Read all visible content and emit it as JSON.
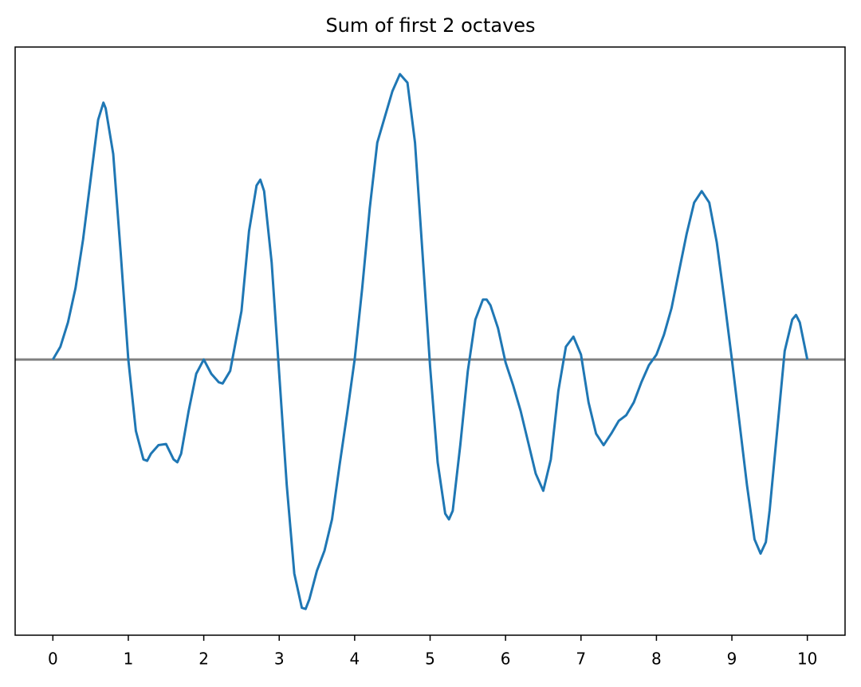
{
  "chart_data": {
    "type": "line",
    "title": "Sum of first 2 octaves",
    "x": [
      0,
      0.1,
      0.2,
      0.3,
      0.4,
      0.5,
      0.6,
      0.67,
      0.7,
      0.8,
      0.9,
      1.0,
      1.1,
      1.2,
      1.25,
      1.3,
      1.4,
      1.5,
      1.6,
      1.65,
      1.7,
      1.8,
      1.9,
      2.0,
      2.1,
      2.2,
      2.25,
      2.35,
      2.5,
      2.6,
      2.7,
      2.75,
      2.8,
      2.9,
      3.0,
      3.1,
      3.2,
      3.3,
      3.35,
      3.4,
      3.5,
      3.6,
      3.7,
      3.8,
      3.9,
      4.0,
      4.1,
      4.2,
      4.3,
      4.4,
      4.5,
      4.6,
      4.7,
      4.8,
      4.9,
      5.0,
      5.1,
      5.2,
      5.25,
      5.3,
      5.4,
      5.5,
      5.6,
      5.7,
      5.75,
      5.8,
      5.9,
      6.0,
      6.1,
      6.2,
      6.3,
      6.4,
      6.5,
      6.6,
      6.7,
      6.8,
      6.9,
      7.0,
      7.1,
      7.2,
      7.3,
      7.4,
      7.5,
      7.6,
      7.7,
      7.8,
      7.9,
      8.0,
      8.1,
      8.2,
      8.3,
      8.4,
      8.5,
      8.6,
      8.7,
      8.8,
      8.9,
      9.0,
      9.1,
      9.2,
      9.3,
      9.38,
      9.45,
      9.5,
      9.6,
      9.7,
      9.8,
      9.85,
      9.9,
      10
    ],
    "series": [
      {
        "color": "#1f77b4",
        "values": [
          0,
          0.045,
          0.13,
          0.25,
          0.42,
          0.63,
          0.84,
          0.9,
          0.88,
          0.72,
          0.37,
          0,
          -0.25,
          -0.35,
          -0.355,
          -0.33,
          -0.3,
          -0.296,
          -0.35,
          -0.36,
          -0.33,
          -0.18,
          -0.05,
          0,
          -0.05,
          -0.08,
          -0.084,
          -0.04,
          0.17,
          0.45,
          0.61,
          0.63,
          0.59,
          0.34,
          -0.05,
          -0.44,
          -0.75,
          -0.87,
          -0.874,
          -0.84,
          -0.74,
          -0.67,
          -0.56,
          -0.37,
          -0.19,
          0,
          0.25,
          0.53,
          0.76,
          0.85,
          0.94,
          1.0,
          0.97,
          0.76,
          0.37,
          -0.025,
          -0.36,
          -0.54,
          -0.56,
          -0.53,
          -0.3,
          -0.04,
          0.14,
          0.21,
          0.21,
          0.19,
          0.11,
          -0.01,
          -0.09,
          -0.18,
          -0.29,
          -0.4,
          -0.46,
          -0.35,
          -0.11,
          0.045,
          0.08,
          0.017,
          -0.15,
          -0.26,
          -0.3,
          -0.26,
          -0.215,
          -0.195,
          -0.15,
          -0.08,
          -0.02,
          0.017,
          0.087,
          0.18,
          0.31,
          0.44,
          0.55,
          0.59,
          0.55,
          0.41,
          0.21,
          0,
          -0.22,
          -0.44,
          -0.63,
          -0.68,
          -0.64,
          -0.53,
          -0.25,
          0.03,
          0.14,
          0.156,
          0.13,
          0
        ]
      }
    ],
    "hline": {
      "value": 0,
      "color": "#808080"
    },
    "xlim": [
      -0.5,
      10.5
    ],
    "xticks": [
      0,
      1,
      2,
      3,
      4,
      5,
      6,
      7,
      8,
      9,
      10
    ],
    "ylim": [
      -0.966,
      1.095
    ]
  }
}
